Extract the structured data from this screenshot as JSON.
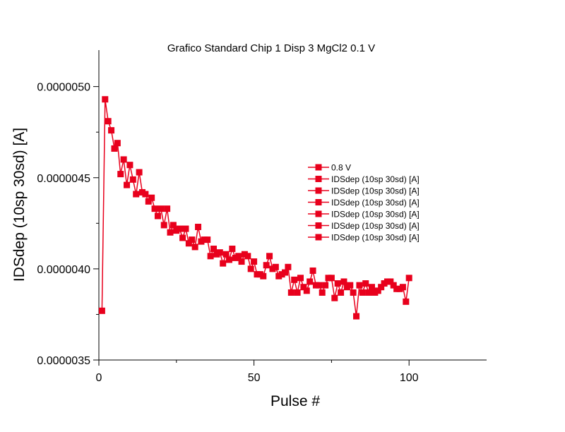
{
  "chart_data": {
    "type": "scatter",
    "title": "Grafico Standard Chip 1 Disp 3 MgCl2 0.1 V",
    "xlabel": "Pulse #",
    "ylabel": "IDSdep (10sp 30sd) [A]",
    "xlim": [
      0,
      125
    ],
    "ylim": [
      3.5e-06,
      5.2e-06
    ],
    "xticks": [
      0,
      50,
      100
    ],
    "xtick_labels": [
      "0",
      "50",
      "100"
    ],
    "yticks": [
      3.5e-06,
      4e-06,
      4.5e-06,
      5e-06
    ],
    "ytick_labels": [
      "0.0000035",
      "0.0000040",
      "0.0000045",
      "0.0000050"
    ],
    "grid": false,
    "legend_position": "center-right",
    "color": "#e8001c",
    "legend": [
      "0.8 V",
      "IDSdep (10sp 30sd) [A]",
      "IDSdep (10sp 30sd) [A]",
      "IDSdep (10sp 30sd) [A]",
      "IDSdep (10sp 30sd) [A]",
      "IDSdep (10sp 30sd) [A]",
      "IDSdep (10sp 30sd) [A]"
    ],
    "series": [
      {
        "name": "0.8 V",
        "x": [
          1,
          2,
          3,
          4,
          5,
          6,
          7,
          8,
          9,
          10,
          11,
          12,
          13,
          14,
          15,
          16,
          17,
          18,
          19,
          20,
          21,
          22,
          23,
          24,
          25,
          26,
          27,
          28,
          29,
          30,
          31,
          32,
          33,
          34,
          35,
          36,
          37,
          38,
          39,
          40,
          41,
          42,
          43,
          44,
          45,
          46,
          47,
          48,
          49,
          50,
          51,
          52,
          53,
          54,
          55,
          56,
          57,
          58,
          59,
          60,
          61,
          62,
          63,
          64,
          65,
          66,
          67,
          68,
          69,
          70,
          71,
          72,
          73,
          74,
          75,
          76,
          77,
          78,
          79,
          80,
          81,
          82,
          83,
          84,
          85,
          86,
          87,
          88,
          89,
          90,
          91,
          92,
          93,
          94,
          95,
          96,
          97,
          98,
          99,
          100
        ],
        "y": [
          3.77e-06,
          4.93e-06,
          4.81e-06,
          4.76e-06,
          4.66e-06,
          4.69e-06,
          4.52e-06,
          4.6e-06,
          4.46e-06,
          4.57e-06,
          4.49e-06,
          4.41e-06,
          4.53e-06,
          4.42e-06,
          4.41e-06,
          4.37e-06,
          4.39e-06,
          4.33e-06,
          4.29e-06,
          4.33e-06,
          4.24e-06,
          4.33e-06,
          4.2e-06,
          4.24e-06,
          4.21e-06,
          4.22e-06,
          4.17e-06,
          4.22e-06,
          4.14e-06,
          4.16e-06,
          4.12e-06,
          4.23e-06,
          4.15e-06,
          4.16e-06,
          4.16e-06,
          4.07e-06,
          4.11e-06,
          4.08e-06,
          4.09e-06,
          4.03e-06,
          4.08e-06,
          4.05e-06,
          4.11e-06,
          4.06e-06,
          4.07e-06,
          4.04e-06,
          4.08e-06,
          4.07e-06,
          4e-06,
          4.04e-06,
          3.97e-06,
          3.97e-06,
          3.96e-06,
          4.02e-06,
          4.07e-06,
          4e-06,
          4.01e-06,
          3.96e-06,
          3.97e-06,
          3.98e-06,
          4.01e-06,
          3.87e-06,
          3.94e-06,
          3.87e-06,
          3.95e-06,
          3.9e-06,
          3.88e-06,
          3.93e-06,
          3.99e-06,
          3.91e-06,
          3.91e-06,
          3.87e-06,
          3.91e-06,
          3.95e-06,
          3.95e-06,
          3.84e-06,
          3.92e-06,
          3.87e-06,
          3.93e-06,
          3.9e-06,
          3.91e-06,
          3.87e-06,
          3.74e-06,
          3.91e-06,
          3.87e-06,
          3.92e-06,
          3.87e-06,
          3.9e-06,
          3.87e-06,
          3.88e-06,
          3.9e-06,
          3.92e-06,
          3.93e-06,
          3.93e-06,
          3.91e-06,
          3.89e-06,
          3.89e-06,
          3.9e-06,
          3.82e-06,
          3.95e-06
        ]
      }
    ]
  }
}
